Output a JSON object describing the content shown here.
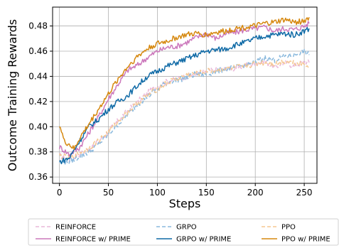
{
  "chart_data": {
    "type": "line",
    "xlabel": "Steps",
    "ylabel": "Outcome Training Rewards",
    "xlim": [
      -7,
      263
    ],
    "ylim": [
      0.355,
      0.495
    ],
    "xticks": [
      "0",
      "50",
      "100",
      "150",
      "200",
      "250"
    ],
    "yticks": [
      "0.36",
      "0.38",
      "0.40",
      "0.42",
      "0.44",
      "0.46",
      "0.48"
    ],
    "grid": true,
    "legend_position": "bottom",
    "series": [
      {
        "name": "REINFORCE",
        "color": "#e9b7d9",
        "dashed": true,
        "points": [
          [
            0,
            0.377
          ],
          [
            10,
            0.374
          ],
          [
            20,
            0.378
          ],
          [
            30,
            0.382
          ],
          [
            40,
            0.388
          ],
          [
            50,
            0.396
          ],
          [
            60,
            0.405
          ],
          [
            70,
            0.413
          ],
          [
            80,
            0.42
          ],
          [
            90,
            0.427
          ],
          [
            100,
            0.432
          ],
          [
            110,
            0.436
          ],
          [
            120,
            0.438
          ],
          [
            130,
            0.44
          ],
          [
            140,
            0.442
          ],
          [
            150,
            0.444
          ],
          [
            160,
            0.445
          ],
          [
            170,
            0.446
          ],
          [
            180,
            0.446
          ],
          [
            190,
            0.449
          ],
          [
            200,
            0.45
          ],
          [
            210,
            0.452
          ],
          [
            220,
            0.447
          ],
          [
            230,
            0.451
          ],
          [
            240,
            0.448
          ],
          [
            250,
            0.452
          ],
          [
            255,
            0.451
          ]
        ]
      },
      {
        "name": "REINFORCE w/ PRIME",
        "color": "#cc78bc",
        "dashed": false,
        "points": [
          [
            0,
            0.384
          ],
          [
            10,
            0.378
          ],
          [
            20,
            0.383
          ],
          [
            30,
            0.395
          ],
          [
            40,
            0.408
          ],
          [
            50,
            0.422
          ],
          [
            60,
            0.434
          ],
          [
            70,
            0.445
          ],
          [
            80,
            0.449
          ],
          [
            90,
            0.455
          ],
          [
            100,
            0.46
          ],
          [
            110,
            0.463
          ],
          [
            120,
            0.464
          ],
          [
            130,
            0.467
          ],
          [
            140,
            0.471
          ],
          [
            150,
            0.474
          ],
          [
            160,
            0.47
          ],
          [
            170,
            0.474
          ],
          [
            180,
            0.475
          ],
          [
            190,
            0.477
          ],
          [
            200,
            0.478
          ],
          [
            210,
            0.479
          ],
          [
            220,
            0.476
          ],
          [
            230,
            0.478
          ],
          [
            240,
            0.477
          ],
          [
            250,
            0.48
          ],
          [
            255,
            0.482
          ]
        ]
      },
      {
        "name": "GRPO",
        "color": "#88b8dd",
        "dashed": true,
        "points": [
          [
            0,
            0.372
          ],
          [
            10,
            0.372
          ],
          [
            20,
            0.376
          ],
          [
            30,
            0.38
          ],
          [
            40,
            0.386
          ],
          [
            50,
            0.394
          ],
          [
            60,
            0.402
          ],
          [
            70,
            0.41
          ],
          [
            80,
            0.418
          ],
          [
            90,
            0.424
          ],
          [
            100,
            0.43
          ],
          [
            110,
            0.435
          ],
          [
            120,
            0.437
          ],
          [
            130,
            0.439
          ],
          [
            140,
            0.442
          ],
          [
            150,
            0.441
          ],
          [
            160,
            0.444
          ],
          [
            170,
            0.446
          ],
          [
            180,
            0.447
          ],
          [
            190,
            0.449
          ],
          [
            200,
            0.451
          ],
          [
            210,
            0.455
          ],
          [
            220,
            0.453
          ],
          [
            230,
            0.456
          ],
          [
            240,
            0.457
          ],
          [
            250,
            0.46
          ],
          [
            255,
            0.457
          ]
        ]
      },
      {
        "name": "GRPO w/ PRIME",
        "color": "#0f6aa6",
        "dashed": false,
        "points": [
          [
            0,
            0.372
          ],
          [
            10,
            0.375
          ],
          [
            20,
            0.388
          ],
          [
            30,
            0.4
          ],
          [
            40,
            0.406
          ],
          [
            50,
            0.414
          ],
          [
            60,
            0.42
          ],
          [
            70,
            0.425
          ],
          [
            80,
            0.433
          ],
          [
            90,
            0.44
          ],
          [
            100,
            0.444
          ],
          [
            110,
            0.448
          ],
          [
            120,
            0.451
          ],
          [
            130,
            0.454
          ],
          [
            140,
            0.457
          ],
          [
            150,
            0.46
          ],
          [
            160,
            0.461
          ],
          [
            170,
            0.462
          ],
          [
            180,
            0.465
          ],
          [
            190,
            0.467
          ],
          [
            200,
            0.47
          ],
          [
            210,
            0.472
          ],
          [
            220,
            0.473
          ],
          [
            230,
            0.474
          ],
          [
            240,
            0.473
          ],
          [
            250,
            0.476
          ],
          [
            255,
            0.478
          ]
        ]
      },
      {
        "name": "PPO",
        "color": "#f5c790",
        "dashed": true,
        "points": [
          [
            0,
            0.377
          ],
          [
            10,
            0.375
          ],
          [
            20,
            0.379
          ],
          [
            30,
            0.383
          ],
          [
            40,
            0.389
          ],
          [
            50,
            0.396
          ],
          [
            60,
            0.404
          ],
          [
            70,
            0.412
          ],
          [
            80,
            0.419
          ],
          [
            90,
            0.425
          ],
          [
            100,
            0.43
          ],
          [
            110,
            0.435
          ],
          [
            120,
            0.438
          ],
          [
            130,
            0.441
          ],
          [
            140,
            0.442
          ],
          [
            150,
            0.444
          ],
          [
            160,
            0.445
          ],
          [
            170,
            0.446
          ],
          [
            180,
            0.447
          ],
          [
            190,
            0.448
          ],
          [
            200,
            0.45
          ],
          [
            210,
            0.451
          ],
          [
            220,
            0.45
          ],
          [
            230,
            0.452
          ],
          [
            240,
            0.451
          ],
          [
            250,
            0.45
          ],
          [
            255,
            0.449
          ]
        ]
      },
      {
        "name": "PPO w/ PRIME",
        "color": "#d6880f",
        "dashed": false,
        "points": [
          [
            0,
            0.402
          ],
          [
            5,
            0.388
          ],
          [
            10,
            0.386
          ],
          [
            15,
            0.382
          ],
          [
            20,
            0.39
          ],
          [
            30,
            0.402
          ],
          [
            40,
            0.414
          ],
          [
            50,
            0.426
          ],
          [
            60,
            0.438
          ],
          [
            70,
            0.448
          ],
          [
            80,
            0.456
          ],
          [
            90,
            0.462
          ],
          [
            100,
            0.466
          ],
          [
            110,
            0.468
          ],
          [
            120,
            0.471
          ],
          [
            130,
            0.473
          ],
          [
            140,
            0.474
          ],
          [
            150,
            0.473
          ],
          [
            160,
            0.475
          ],
          [
            170,
            0.476
          ],
          [
            180,
            0.478
          ],
          [
            190,
            0.479
          ],
          [
            200,
            0.48
          ],
          [
            210,
            0.482
          ],
          [
            220,
            0.483
          ],
          [
            230,
            0.485
          ],
          [
            240,
            0.483
          ],
          [
            250,
            0.484
          ],
          [
            255,
            0.487
          ]
        ]
      }
    ]
  }
}
